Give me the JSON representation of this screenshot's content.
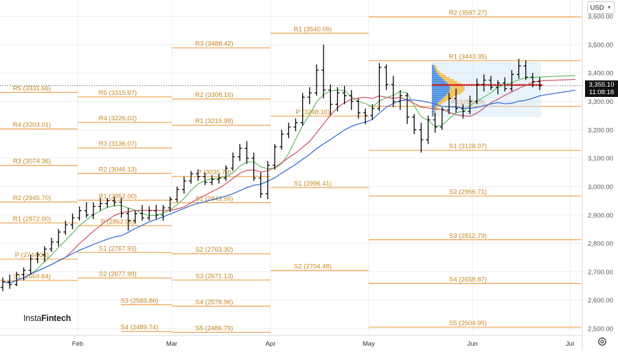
{
  "header": {
    "currency": "USD"
  },
  "watermark": {
    "brand_a": "Insta",
    "brand_b": "Fintech"
  },
  "price_badge": {
    "price": "3,355.10",
    "countdown": "11:08:18"
  },
  "colors": {
    "candles": "#000000",
    "pivot": "#f0a04b",
    "pivot_label": "#c8841f",
    "ma_fast": "#6bbf6b",
    "ma_mid": "#d0586a",
    "ma_slow": "#3b6fd4",
    "volume_profile_buy": "#2f7fe0",
    "volume_profile_sell": "#f4b63a",
    "volume_profile_bg": "#cfe5f7",
    "poc_line": "#e02020",
    "price_line": "#333333"
  },
  "chart_data": {
    "type": "candlestick",
    "ylim": [
      2480,
      3620
    ],
    "y_ticks": [
      "2,500.00",
      "2,600.00",
      "2,700.00",
      "2,800.00",
      "2,900.00",
      "3,000.00",
      "3,100.00",
      "3,200.00",
      "3,300.00",
      "3,400.00",
      "3,500.00",
      "3,600.00"
    ],
    "x_ticks": [
      "Feb",
      "Mar",
      "Apr",
      "May",
      "Jun",
      "Jul"
    ],
    "current_price": 3355.1,
    "pivot_levels": [
      {
        "period": "Jan",
        "name": "R5",
        "value": 3331.66,
        "label": "R5 (3331.66)"
      },
      {
        "period": "Jan",
        "name": "R4",
        "value": 3203.01,
        "label": "R4 (3203.01)"
      },
      {
        "period": "Jan",
        "name": "R3",
        "value": 3074.36,
        "label": "R3 (3074.36)"
      },
      {
        "period": "Jan",
        "name": "R2",
        "value": 2945.7,
        "label": "R2 (2945.70)"
      },
      {
        "period": "Jan",
        "name": "R1",
        "value": 2872.0,
        "label": "R1 (2872.00)"
      },
      {
        "period": "Jan",
        "name": "P",
        "value": 2744.34,
        "label": "P (2744.34)"
      },
      {
        "period": "Jan",
        "name": "S1",
        "value": 2669.64,
        "label": "S1 (2669.64)"
      },
      {
        "period": "Feb",
        "name": "R5",
        "value": 3315.97,
        "label": "R5 (3315.97)"
      },
      {
        "period": "Feb",
        "name": "R4",
        "value": 3226.02,
        "label": "R4 (3226.02)"
      },
      {
        "period": "Feb",
        "name": "R3",
        "value": 3136.07,
        "label": "R3 (3136.07)"
      },
      {
        "period": "Feb",
        "name": "R2",
        "value": 3046.13,
        "label": "R2 (3046.13)"
      },
      {
        "period": "Feb",
        "name": "R1",
        "value": 2952.0,
        "label": "R1 (2952.00)"
      },
      {
        "period": "Feb",
        "name": "P",
        "value": 2862.06,
        "label": "P (2862.06)"
      },
      {
        "period": "Feb",
        "name": "S1",
        "value": 2767.93,
        "label": "S1 (2767.93)"
      },
      {
        "period": "Feb",
        "name": "S2",
        "value": 2677.99,
        "label": "S2 (2677.99)"
      },
      {
        "period": "Feb",
        "name": "S3",
        "value": 2583.86,
        "label": "S3 (2583.86)"
      },
      {
        "period": "Feb",
        "name": "S4",
        "value": 2489.74,
        "label": "S4 (2489.74)"
      },
      {
        "period": "Mar",
        "name": "R3",
        "value": 3488.42,
        "label": "R3 (3488.42)"
      },
      {
        "period": "Mar",
        "name": "R2",
        "value": 3308.16,
        "label": "R2 (3308.16)"
      },
      {
        "period": "Mar",
        "name": "R1",
        "value": 3215.99,
        "label": "R1 (3215.99)"
      },
      {
        "period": "Mar",
        "name": "P",
        "value": 3035.73,
        "label": "P (3035.73)"
      },
      {
        "period": "Mar",
        "name": "S1",
        "value": 2943.56,
        "label": "S1 (2943.56)"
      },
      {
        "period": "Mar",
        "name": "S2",
        "value": 2763.3,
        "label": "S2 (2763.30)"
      },
      {
        "period": "Mar",
        "name": "S3",
        "value": 2671.13,
        "label": "S3 (2671.13)"
      },
      {
        "period": "Mar",
        "name": "S4",
        "value": 2578.96,
        "label": "S4 (2578.96)"
      },
      {
        "period": "Mar",
        "name": "S5",
        "value": 2486.79,
        "label": "S5 (2486.79)"
      },
      {
        "period": "Apr",
        "name": "R1",
        "value": 3540.09,
        "label": "R1 (3540.09)"
      },
      {
        "period": "Apr",
        "name": "P",
        "value": 3248.16,
        "label": "P (3248.16)"
      },
      {
        "period": "Apr",
        "name": "S1",
        "value": 2996.41,
        "label": "S1 (2996.41)"
      },
      {
        "period": "Apr",
        "name": "S2",
        "value": 2704.48,
        "label": "S2 (2704.48)"
      },
      {
        "period": "May",
        "name": "R2",
        "value": 3597.27,
        "label": "R2 (3597.27)"
      },
      {
        "period": "May",
        "name": "R1",
        "value": 3443.35,
        "label": "R1 (3443.35)"
      },
      {
        "period": "May",
        "name": "P",
        "value": 3282.89,
        "label": "P (3282.89)"
      },
      {
        "period": "May",
        "name": "S1",
        "value": 3128.07,
        "label": "S1 (3128.07)"
      },
      {
        "period": "May",
        "name": "S2",
        "value": 2966.71,
        "label": "S2 (2966.71)"
      },
      {
        "period": "May",
        "name": "S3",
        "value": 2812.79,
        "label": "S3 (2812.79)"
      },
      {
        "period": "May",
        "name": "S4",
        "value": 2658.87,
        "label": "S4 (2658.87)"
      },
      {
        "period": "May",
        "name": "S5",
        "value": 2504.95,
        "label": "S5 (2504.95)"
      }
    ],
    "bars": [
      {
        "o": 2645,
        "h": 2680,
        "l": 2632,
        "c": 2665
      },
      {
        "o": 2665,
        "h": 2690,
        "l": 2640,
        "c": 2655
      },
      {
        "o": 2655,
        "h": 2700,
        "l": 2650,
        "c": 2690
      },
      {
        "o": 2690,
        "h": 2715,
        "l": 2670,
        "c": 2705
      },
      {
        "o": 2705,
        "h": 2760,
        "l": 2690,
        "c": 2745
      },
      {
        "o": 2745,
        "h": 2770,
        "l": 2730,
        "c": 2760
      },
      {
        "o": 2760,
        "h": 2790,
        "l": 2735,
        "c": 2780
      },
      {
        "o": 2780,
        "h": 2820,
        "l": 2770,
        "c": 2805
      },
      {
        "o": 2805,
        "h": 2850,
        "l": 2790,
        "c": 2840
      },
      {
        "o": 2840,
        "h": 2880,
        "l": 2830,
        "c": 2865
      },
      {
        "o": 2865,
        "h": 2905,
        "l": 2850,
        "c": 2890
      },
      {
        "o": 2890,
        "h": 2930,
        "l": 2880,
        "c": 2915
      },
      {
        "o": 2915,
        "h": 2945,
        "l": 2890,
        "c": 2900
      },
      {
        "o": 2900,
        "h": 2945,
        "l": 2885,
        "c": 2930
      },
      {
        "o": 2930,
        "h": 2960,
        "l": 2915,
        "c": 2940
      },
      {
        "o": 2940,
        "h": 2960,
        "l": 2925,
        "c": 2950
      },
      {
        "o": 2950,
        "h": 2965,
        "l": 2930,
        "c": 2945
      },
      {
        "o": 2945,
        "h": 2960,
        "l": 2890,
        "c": 2905
      },
      {
        "o": 2905,
        "h": 2925,
        "l": 2845,
        "c": 2880
      },
      {
        "o": 2880,
        "h": 2915,
        "l": 2870,
        "c": 2905
      },
      {
        "o": 2905,
        "h": 2935,
        "l": 2880,
        "c": 2890
      },
      {
        "o": 2890,
        "h": 2930,
        "l": 2880,
        "c": 2915
      },
      {
        "o": 2915,
        "h": 2935,
        "l": 2885,
        "c": 2900
      },
      {
        "o": 2900,
        "h": 2935,
        "l": 2880,
        "c": 2925
      },
      {
        "o": 2925,
        "h": 2965,
        "l": 2910,
        "c": 2955
      },
      {
        "o": 2955,
        "h": 3000,
        "l": 2945,
        "c": 2990
      },
      {
        "o": 2990,
        "h": 3035,
        "l": 2975,
        "c": 3020
      },
      {
        "o": 3020,
        "h": 3055,
        "l": 3010,
        "c": 3045
      },
      {
        "o": 3045,
        "h": 3060,
        "l": 3020,
        "c": 3035
      },
      {
        "o": 3035,
        "h": 3050,
        "l": 3005,
        "c": 3015
      },
      {
        "o": 3015,
        "h": 3040,
        "l": 3005,
        "c": 3025
      },
      {
        "o": 3025,
        "h": 3045,
        "l": 3010,
        "c": 3030
      },
      {
        "o": 3030,
        "h": 3075,
        "l": 3020,
        "c": 3065
      },
      {
        "o": 3065,
        "h": 3120,
        "l": 3055,
        "c": 3105
      },
      {
        "o": 3105,
        "h": 3150,
        "l": 3090,
        "c": 3135
      },
      {
        "o": 3135,
        "h": 3160,
        "l": 3080,
        "c": 3100
      },
      {
        "o": 3100,
        "h": 3120,
        "l": 3020,
        "c": 3030
      },
      {
        "o": 3030,
        "h": 3050,
        "l": 2960,
        "c": 2975
      },
      {
        "o": 2975,
        "h": 3090,
        "l": 2955,
        "c": 3075
      },
      {
        "o": 3075,
        "h": 3150,
        "l": 3060,
        "c": 3140
      },
      {
        "o": 3140,
        "h": 3200,
        "l": 3130,
        "c": 3185
      },
      {
        "o": 3185,
        "h": 3225,
        "l": 3170,
        "c": 3210
      },
      {
        "o": 3210,
        "h": 3240,
        "l": 3195,
        "c": 3225
      },
      {
        "o": 3225,
        "h": 3330,
        "l": 3215,
        "c": 3315
      },
      {
        "o": 3315,
        "h": 3350,
        "l": 3290,
        "c": 3330
      },
      {
        "o": 3330,
        "h": 3430,
        "l": 3320,
        "c": 3410
      },
      {
        "o": 3410,
        "h": 3500,
        "l": 3310,
        "c": 3340
      },
      {
        "o": 3340,
        "h": 3360,
        "l": 3250,
        "c": 3290
      },
      {
        "o": 3290,
        "h": 3350,
        "l": 3265,
        "c": 3330
      },
      {
        "o": 3330,
        "h": 3355,
        "l": 3290,
        "c": 3320
      },
      {
        "o": 3320,
        "h": 3340,
        "l": 3270,
        "c": 3300
      },
      {
        "o": 3300,
        "h": 3310,
        "l": 3240,
        "c": 3260
      },
      {
        "o": 3260,
        "h": 3275,
        "l": 3220,
        "c": 3250
      },
      {
        "o": 3250,
        "h": 3290,
        "l": 3235,
        "c": 3275
      },
      {
        "o": 3275,
        "h": 3435,
        "l": 3265,
        "c": 3420
      },
      {
        "o": 3420,
        "h": 3430,
        "l": 3340,
        "c": 3360
      },
      {
        "o": 3360,
        "h": 3390,
        "l": 3280,
        "c": 3300
      },
      {
        "o": 3300,
        "h": 3340,
        "l": 3270,
        "c": 3320
      },
      {
        "o": 3320,
        "h": 3330,
        "l": 3220,
        "c": 3245
      },
      {
        "o": 3245,
        "h": 3255,
        "l": 3185,
        "c": 3200
      },
      {
        "o": 3200,
        "h": 3225,
        "l": 3120,
        "c": 3165
      },
      {
        "o": 3165,
        "h": 3250,
        "l": 3150,
        "c": 3235
      },
      {
        "o": 3235,
        "h": 3260,
        "l": 3190,
        "c": 3210
      },
      {
        "o": 3210,
        "h": 3280,
        "l": 3200,
        "c": 3270
      },
      {
        "o": 3270,
        "h": 3330,
        "l": 3255,
        "c": 3310
      },
      {
        "o": 3310,
        "h": 3345,
        "l": 3260,
        "c": 3275
      },
      {
        "o": 3275,
        "h": 3290,
        "l": 3240,
        "c": 3265
      },
      {
        "o": 3265,
        "h": 3320,
        "l": 3255,
        "c": 3300
      },
      {
        "o": 3300,
        "h": 3380,
        "l": 3290,
        "c": 3360
      },
      {
        "o": 3360,
        "h": 3395,
        "l": 3335,
        "c": 3375
      },
      {
        "o": 3375,
        "h": 3390,
        "l": 3340,
        "c": 3350
      },
      {
        "o": 3350,
        "h": 3375,
        "l": 3325,
        "c": 3365
      },
      {
        "o": 3365,
        "h": 3385,
        "l": 3335,
        "c": 3345
      },
      {
        "o": 3345,
        "h": 3410,
        "l": 3335,
        "c": 3395
      },
      {
        "o": 3395,
        "h": 3450,
        "l": 3380,
        "c": 3425
      },
      {
        "o": 3425,
        "h": 3445,
        "l": 3375,
        "c": 3385
      },
      {
        "o": 3385,
        "h": 3400,
        "l": 3350,
        "c": 3370
      },
      {
        "o": 3370,
        "h": 3385,
        "l": 3340,
        "c": 3355
      }
    ]
  }
}
